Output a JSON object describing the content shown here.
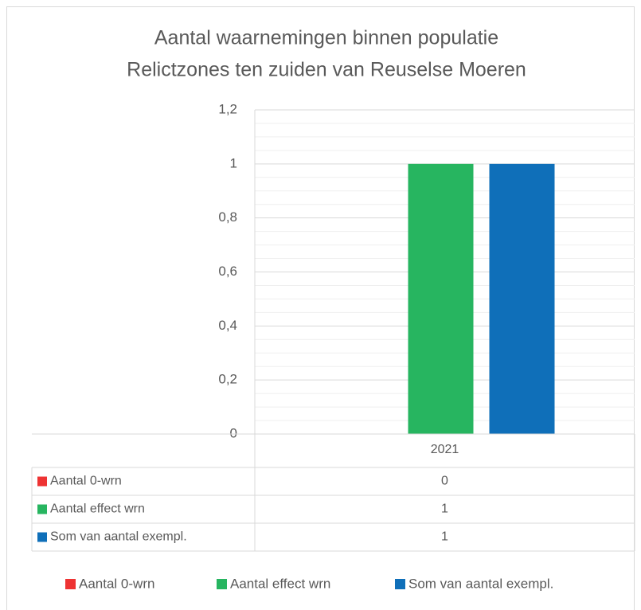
{
  "chart_data": {
    "type": "bar",
    "title": [
      "Aantal waarnemingen binnen populatie",
      "Relictzones ten zuiden van Reuselse Moeren"
    ],
    "categories": [
      "2021"
    ],
    "series": [
      {
        "name": "Aantal 0-wrn",
        "color": "#ee3333",
        "values": [
          0
        ]
      },
      {
        "name": "Aantal effect wrn",
        "color": "#27b560",
        "values": [
          1
        ]
      },
      {
        "name": "Som van aantal exempl.",
        "color": "#0f6fb9",
        "values": [
          1
        ]
      }
    ],
    "ylim": [
      0,
      1.2
    ],
    "yticks": [
      0,
      {
        "value": 0.2,
        "label": "0,2"
      },
      {
        "value": 0.4,
        "label": "0,4"
      },
      {
        "value": 0.6,
        "label": "0,6"
      },
      {
        "value": 0.8,
        "label": "0,8"
      },
      1,
      {
        "value": 1.2,
        "label": "1,2"
      }
    ],
    "minor_yticks": [
      0.05,
      0.1,
      0.15,
      0.25,
      0.3,
      0.35,
      0.45,
      0.5,
      0.55,
      0.65,
      0.7,
      0.75,
      0.85,
      0.9,
      0.95,
      1.05,
      1.1,
      1.15
    ],
    "grid": true,
    "data_table": true,
    "legend": "bottom"
  }
}
